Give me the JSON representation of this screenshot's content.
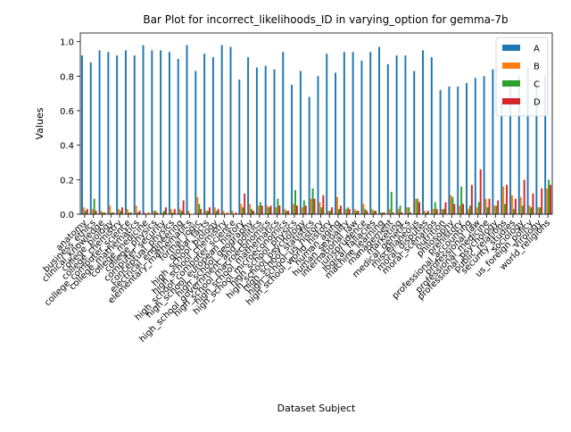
{
  "chart_data": {
    "type": "bar",
    "title": "Bar Plot for incorrect_likelihoods_ID in varying_option for gemma-7b",
    "xlabel": "Dataset Subject",
    "ylabel": "Values",
    "ylim": [
      0,
      1.05
    ],
    "yticks": [
      0.0,
      0.2,
      0.4,
      0.6,
      0.8,
      1.0
    ],
    "ytick_labels": [
      "0.0",
      "0.2",
      "0.4",
      "0.6",
      "0.8",
      "1.0"
    ],
    "grid": false,
    "legend_position": "top-right",
    "categories": [
      "anatomy",
      "business_ethics",
      "clinical_knowledge",
      "college_biology",
      "college_chemistry",
      "college_computer_science",
      "college_mathematics",
      "college_medicine",
      "college_physics",
      "computer_security",
      "conceptual_physics",
      "electrical_engineering",
      "elementary_mathematics",
      "formal_logic",
      "global_facts",
      "high_school_biology",
      "high_school_chemistry",
      "high_school_computer_science",
      "high_school_european_history",
      "high_school_geography",
      "high_school_government_and_politics",
      "high_school_macroeconomics",
      "high_school_mathematics",
      "high_school_microeconomics",
      "high_school_physics",
      "high_school_psychology",
      "high_school_statistics",
      "high_school_us_history",
      "high_school_world_history",
      "human_aging",
      "human_sexuality",
      "international_law",
      "jurisprudence",
      "logical_fallacies",
      "machine_learning",
      "management",
      "marketing",
      "medical_genetics",
      "miscellaneous",
      "moral_disputes",
      "moral_scenarios",
      "nutrition",
      "philosophy",
      "prehistory",
      "professional_accounting",
      "professional_law",
      "professional_medicine",
      "professional_psychology",
      "public_relations",
      "security_studies",
      "sociology",
      "us_foreign_policy",
      "virology",
      "world_religions"
    ],
    "series": [
      {
        "name": "A",
        "color": "#1f77b4",
        "values": [
          0.92,
          0.88,
          0.95,
          0.94,
          0.92,
          0.95,
          0.92,
          0.98,
          0.95,
          0.95,
          0.94,
          0.9,
          0.98,
          0.83,
          0.93,
          0.91,
          0.98,
          0.97,
          0.78,
          0.91,
          0.85,
          0.86,
          0.84,
          0.94,
          0.75,
          0.83,
          0.68,
          0.8,
          0.93,
          0.82,
          0.94,
          0.94,
          0.89,
          0.94,
          0.97,
          0.87,
          0.92,
          0.92,
          0.83,
          0.95,
          0.91,
          0.72,
          0.74,
          0.74,
          0.76,
          0.79,
          0.8,
          0.84,
          0.65,
          0.78,
          0.8,
          0.85,
          0.78,
          0.8
        ]
      },
      {
        "name": "B",
        "color": "#ff7f0e",
        "values": [
          0.04,
          0.03,
          0.02,
          0.05,
          0.03,
          0.03,
          0.05,
          0.01,
          0.02,
          0.01,
          0.03,
          0.03,
          0.02,
          0.1,
          0.02,
          0.04,
          0.02,
          0.02,
          0.06,
          0.06,
          0.05,
          0.05,
          0.04,
          0.03,
          0.06,
          0.04,
          0.09,
          0.07,
          0.02,
          0.1,
          0.03,
          0.03,
          0.06,
          0.03,
          0.01,
          0.03,
          0.03,
          0.04,
          0.09,
          0.02,
          0.03,
          0.03,
          0.11,
          0.05,
          0.03,
          0.04,
          0.09,
          0.05,
          0.16,
          0.11,
          0.1,
          0.05,
          0.04,
          0.15
        ]
      },
      {
        "name": "C",
        "color": "#2ca02c",
        "values": [
          0.02,
          0.09,
          0.01,
          0.01,
          0.02,
          0.01,
          0.01,
          0.0,
          0.02,
          0.02,
          0.01,
          0.02,
          0.0,
          0.06,
          0.02,
          0.02,
          0.0,
          0.0,
          0.04,
          0.03,
          0.07,
          0.04,
          0.09,
          0.02,
          0.14,
          0.08,
          0.15,
          0.04,
          0.02,
          0.03,
          0.04,
          0.02,
          0.03,
          0.02,
          0.01,
          0.13,
          0.05,
          0.04,
          0.09,
          0.01,
          0.07,
          0.03,
          0.1,
          0.16,
          0.05,
          0.07,
          0.04,
          0.05,
          0.06,
          0.03,
          0.05,
          0.04,
          0.04,
          0.2
        ]
      },
      {
        "name": "D",
        "color": "#d62728",
        "values": [
          0.03,
          0.02,
          0.01,
          0.01,
          0.04,
          0.01,
          0.02,
          0.01,
          0.01,
          0.04,
          0.03,
          0.08,
          0.0,
          0.03,
          0.04,
          0.03,
          0.01,
          0.01,
          0.12,
          0.02,
          0.05,
          0.05,
          0.05,
          0.02,
          0.05,
          0.05,
          0.09,
          0.11,
          0.04,
          0.05,
          0.03,
          0.02,
          0.02,
          0.02,
          0.01,
          0.01,
          0.01,
          0.01,
          0.07,
          0.02,
          0.03,
          0.07,
          0.06,
          0.06,
          0.17,
          0.26,
          0.09,
          0.08,
          0.17,
          0.09,
          0.2,
          0.12,
          0.15,
          0.17
        ]
      }
    ]
  }
}
